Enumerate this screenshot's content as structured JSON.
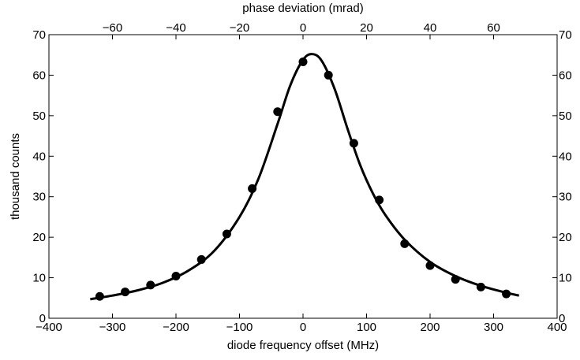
{
  "chart_data": {
    "type": "scatter",
    "title": "",
    "xlabel": "diode frequency offset (MHz)",
    "ylabel": "thousand counts",
    "top_xlabel": "phase deviation (mrad)",
    "xlim": [
      -400,
      400
    ],
    "ylim": [
      0,
      70
    ],
    "top_xlim": [
      -80,
      80
    ],
    "x_ticks": [
      -400,
      -300,
      -200,
      -100,
      0,
      100,
      200,
      300,
      400
    ],
    "x_tick_labels": [
      "−400",
      "−300",
      "−200",
      "−100",
      "0",
      "100",
      "200",
      "300",
      "400"
    ],
    "y_ticks": [
      0,
      10,
      20,
      30,
      40,
      50,
      60,
      70
    ],
    "y_tick_labels": [
      "0",
      "10",
      "20",
      "30",
      "40",
      "50",
      "60",
      "70"
    ],
    "top_x_ticks": [
      -60,
      -40,
      -20,
      0,
      20,
      40,
      60
    ],
    "top_x_tick_labels": [
      "−60",
      "−40",
      "−20",
      "0",
      "20",
      "40",
      "60"
    ],
    "grid": false,
    "series": [
      {
        "type": "scatter",
        "color": "#000000",
        "x": [
          -320,
          -280,
          -240,
          -200,
          -160,
          -120,
          -80,
          -40,
          0,
          40,
          80,
          120,
          160,
          200,
          240,
          280,
          320
        ],
        "y": [
          5.4,
          6.5,
          8.2,
          10.4,
          14.5,
          20.8,
          32.0,
          51.0,
          63.3,
          60.0,
          43.2,
          29.2,
          18.4,
          13.0,
          9.6,
          7.7,
          6.0
        ]
      },
      {
        "type": "line",
        "color": "#000000",
        "x": [
          -335,
          -300,
          -260,
          -220,
          -180,
          -140,
          -100,
          -70,
          -40,
          -20,
          0,
          15,
          30,
          50,
          70,
          90,
          110,
          130,
          160,
          200,
          240,
          280,
          320,
          340
        ],
        "y": [
          4.7,
          5.6,
          6.9,
          8.8,
          11.8,
          16.6,
          25.0,
          34.5,
          48.0,
          57.5,
          63.8,
          65.2,
          63.4,
          56.5,
          46.8,
          37.8,
          30.8,
          25.4,
          19.4,
          13.9,
          10.4,
          8.0,
          6.3,
          5.6
        ]
      }
    ]
  }
}
